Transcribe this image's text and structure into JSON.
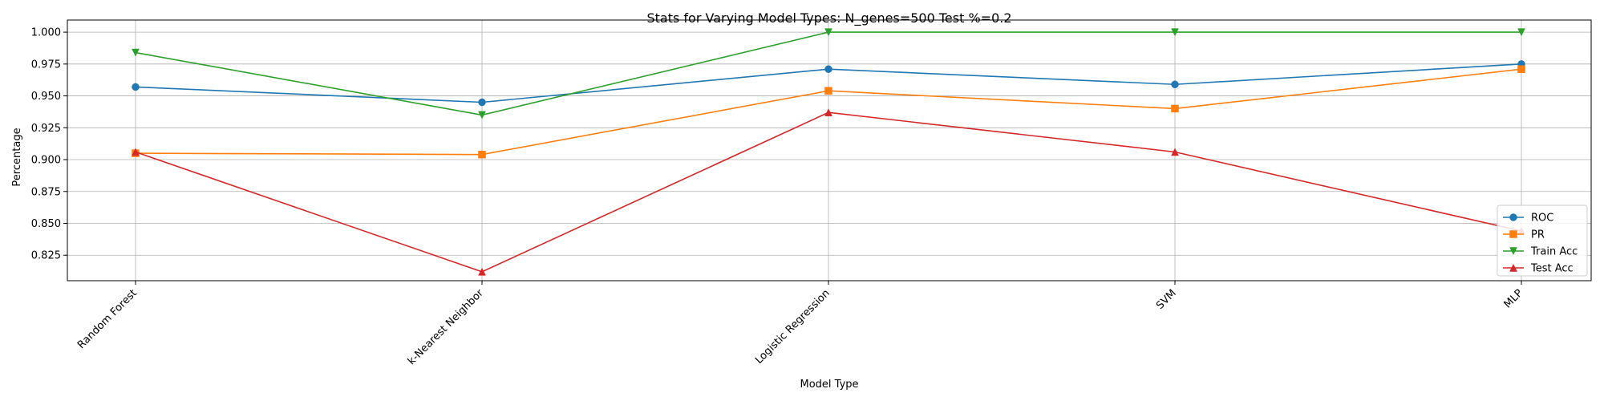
{
  "chart_data": {
    "type": "line",
    "title": "Stats for Varying Model Types: N_genes=500 Test %=0.2",
    "xlabel": "Model Type",
    "ylabel": "Percentage",
    "categories": [
      "Random Forest",
      "k-Nearest Neighbor",
      "Logistic Regression",
      "SVM",
      "MLP"
    ],
    "ylim": [
      0.805,
      1.0095
    ],
    "yticks": [
      0.825,
      0.85,
      0.875,
      0.9,
      0.925,
      0.95,
      0.975,
      1.0
    ],
    "ytick_labels": [
      "0.825",
      "0.850",
      "0.875",
      "0.900",
      "0.925",
      "0.950",
      "0.975",
      "1.000"
    ],
    "grid": true,
    "legend_position": "lower-right",
    "series": [
      {
        "name": "ROC",
        "color": "#1f77b4",
        "marker": "circle",
        "values": [
          0.957,
          0.945,
          0.971,
          0.959,
          0.975
        ]
      },
      {
        "name": "PR",
        "color": "#ff7f0e",
        "marker": "square",
        "values": [
          0.905,
          0.904,
          0.954,
          0.94,
          0.971
        ]
      },
      {
        "name": "Train Acc",
        "color": "#2ca02c",
        "marker": "triangle-down",
        "values": [
          0.984,
          0.935,
          1.0,
          1.0,
          1.0
        ]
      },
      {
        "name": "Test Acc",
        "color": "#d62728",
        "marker": "triangle-up",
        "values": [
          0.906,
          0.812,
          0.937,
          0.906,
          0.844
        ]
      }
    ]
  }
}
